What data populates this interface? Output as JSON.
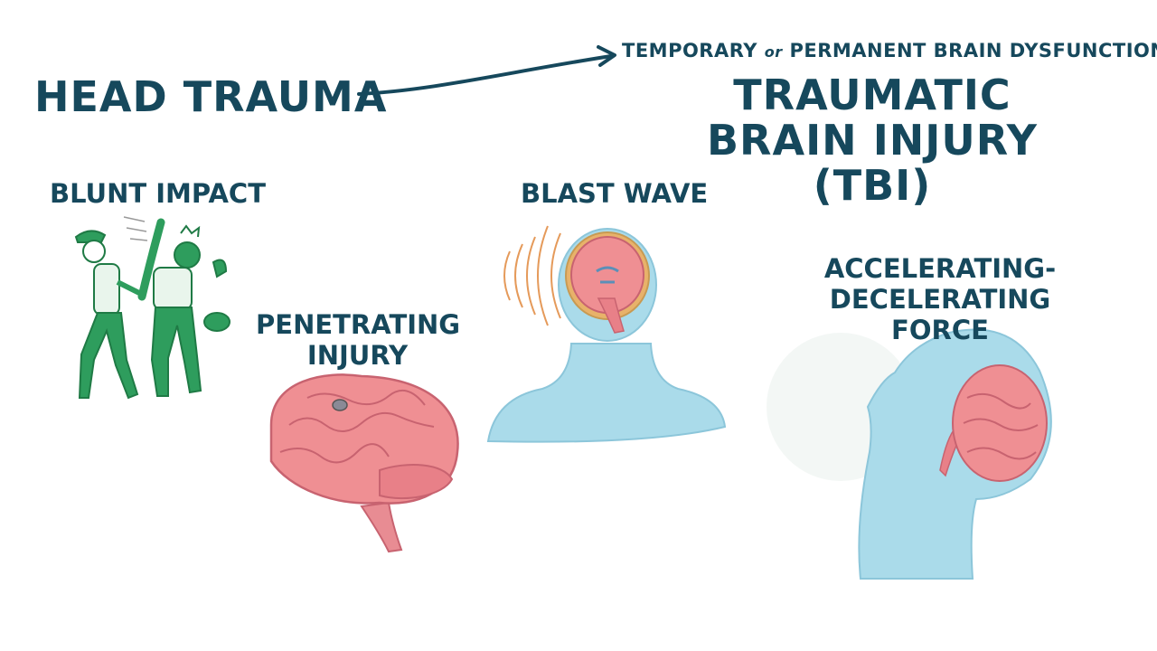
{
  "main_term": "HEAD TRAUMA",
  "definition": {
    "part1": "TEMPORARY",
    "connector": "or",
    "part2": "PERMANENT BRAIN DYSFUNCTION"
  },
  "result_term": "TRAUMATIC BRAIN INJURY (TBI)",
  "causes": {
    "blunt": "BLUNT IMPACT",
    "penetrating": "PENETRATING INJURY",
    "blast": "BLAST WAVE",
    "accel": "ACCELERATING-DECELERATING FORCE"
  },
  "colors": {
    "text": "#16485c",
    "skin_blue": "#aadbea",
    "brain_pink": "#ef8f93",
    "brain_dark": "#d76a72",
    "player_green": "#2e9d5d",
    "wave_orange": "#e59a5a"
  }
}
